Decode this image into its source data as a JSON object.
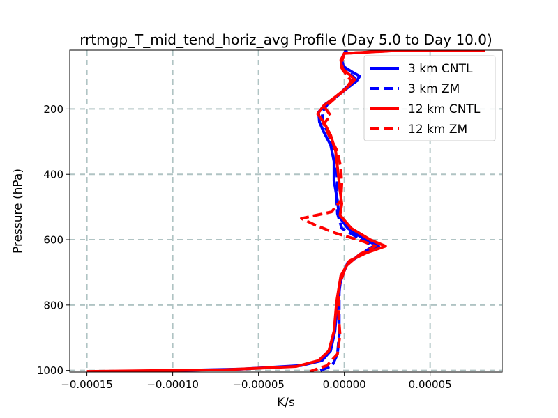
{
  "chart_data": {
    "type": "line",
    "title": "rrtmgp_T_mid_tend_horiz_avg Profile (Day 5.0 to Day 10.0)",
    "xlabel": "K/s",
    "ylabel": "Pressure (hPa)",
    "xlim": [
      -0.00016,
      9.2e-05
    ],
    "ylim": [
      1005,
      20
    ],
    "y_inverted": true,
    "grid": true,
    "legend_position": "top-right",
    "x_ticks": [
      -0.00015,
      -0.0001,
      -5e-05,
      0.0,
      5e-05
    ],
    "x_tick_labels": [
      "−0.00015",
      "−0.00010",
      "−0.00005",
      "0.00000",
      "0.00005"
    ],
    "y_ticks": [
      200,
      400,
      600,
      800,
      1000
    ],
    "y_tick_labels": [
      "200",
      "400",
      "600",
      "800",
      "1000"
    ],
    "series": [
      {
        "name": "3 km CNTL",
        "color": "#0000ff",
        "style": "solid",
        "points": [
          [
            1.5e-06,
            20
          ],
          [
            0.0,
            30
          ],
          [
            -1.5e-06,
            50
          ],
          [
            -5e-07,
            70
          ],
          [
            4e-06,
            85
          ],
          [
            9e-06,
            100
          ],
          [
            7e-06,
            115
          ],
          [
            2e-06,
            135
          ],
          [
            -4e-06,
            160
          ],
          [
            -1.1e-05,
            185
          ],
          [
            -1.5e-05,
            210
          ],
          [
            -1.45e-05,
            240
          ],
          [
            -1.2e-05,
            270
          ],
          [
            -8e-06,
            310
          ],
          [
            -6e-06,
            360
          ],
          [
            -6e-06,
            420
          ],
          [
            -4e-06,
            480
          ],
          [
            -3e-06,
            530
          ],
          [
            2e-06,
            565
          ],
          [
            1.2e-05,
            600
          ],
          [
            2e-05,
            620
          ],
          [
            1.2e-05,
            640
          ],
          [
            2e-06,
            670
          ],
          [
            -2e-06,
            720
          ],
          [
            -4e-06,
            800
          ],
          [
            -5.5e-06,
            880
          ],
          [
            -8e-06,
            940
          ],
          [
            -1.3e-05,
            970
          ],
          [
            -2.5e-05,
            985
          ],
          [
            -6e-05,
            996
          ],
          [
            -0.000125,
            1003
          ]
        ]
      },
      {
        "name": "3 km ZM",
        "color": "#0000ff",
        "style": "dashed",
        "points": [
          [
            1e-06,
            20
          ],
          [
            -1e-06,
            40
          ],
          [
            -1e-06,
            70
          ],
          [
            3e-06,
            90
          ],
          [
            6e-06,
            105
          ],
          [
            3e-06,
            125
          ],
          [
            -2e-06,
            150
          ],
          [
            -9e-06,
            180
          ],
          [
            -1.3e-05,
            210
          ],
          [
            -1.25e-05,
            240
          ],
          [
            -9e-06,
            280
          ],
          [
            -5e-06,
            330
          ],
          [
            -4.5e-06,
            380
          ],
          [
            -4e-06,
            430
          ],
          [
            -4.5e-06,
            470
          ],
          [
            -4e-06,
            520
          ],
          [
            -1.5e-06,
            565
          ],
          [
            1e-05,
            600
          ],
          [
            1.7e-05,
            620
          ],
          [
            9e-06,
            645
          ],
          [
            1e-06,
            680
          ],
          [
            -3e-06,
            740
          ],
          [
            -3e-06,
            820
          ],
          [
            -3e-06,
            890
          ],
          [
            -4e-06,
            950
          ],
          [
            -7e-06,
            985
          ],
          [
            -1.5e-05,
            1003
          ]
        ]
      },
      {
        "name": "12 km CNTL",
        "color": "#ff0000",
        "style": "solid",
        "points": [
          [
            8.2e-05,
            20
          ],
          [
            3.5e-05,
            20
          ],
          [
            0.0,
            30
          ],
          [
            -2e-06,
            50
          ],
          [
            -1.5e-06,
            75
          ],
          [
            3e-06,
            95
          ],
          [
            6e-06,
            110
          ],
          [
            1.5e-06,
            135
          ],
          [
            -4.5e-06,
            160
          ],
          [
            -1.2e-05,
            190
          ],
          [
            -1.55e-05,
            215
          ],
          [
            -1.15e-05,
            245
          ],
          [
            -8e-06,
            280
          ],
          [
            -5e-06,
            330
          ],
          [
            -3.5e-06,
            400
          ],
          [
            -2.5e-06,
            450
          ],
          [
            -1.5e-06,
            490
          ],
          [
            -2.5e-06,
            525
          ],
          [
            4e-06,
            565
          ],
          [
            1.5e-05,
            600
          ],
          [
            2.4e-05,
            620
          ],
          [
            1.3e-05,
            640
          ],
          [
            3e-06,
            665
          ],
          [
            -2e-06,
            710
          ],
          [
            -4.5e-06,
            790
          ],
          [
            -6e-06,
            880
          ],
          [
            -9e-06,
            940
          ],
          [
            -1.5e-05,
            970
          ],
          [
            -2.8e-05,
            988
          ],
          [
            -7e-05,
            998
          ],
          [
            -0.00015,
            1003
          ]
        ]
      },
      {
        "name": "12 km ZM",
        "color": "#ff0000",
        "style": "dashed",
        "points": [
          [
            8.2e-05,
            20
          ],
          [
            3.5e-05,
            20
          ],
          [
            0.0,
            30
          ],
          [
            -1.5e-06,
            55
          ],
          [
            -1e-06,
            80
          ],
          [
            2e-06,
            100
          ],
          [
            4e-06,
            115
          ],
          [
            5e-07,
            140
          ],
          [
            -6e-06,
            170
          ],
          [
            -1.15e-05,
            195
          ],
          [
            -8e-06,
            220
          ],
          [
            -1.2e-05,
            245
          ],
          [
            -9e-06,
            280
          ],
          [
            -4e-06,
            330
          ],
          [
            -2e-06,
            380
          ],
          [
            -1.5e-06,
            430
          ],
          [
            -2e-06,
            480
          ],
          [
            -7.5e-06,
            515
          ],
          [
            -2.5e-05,
            535
          ],
          [
            -1.7e-05,
            555
          ],
          [
            -5e-06,
            580
          ],
          [
            1.1e-05,
            605
          ],
          [
            1.8e-05,
            620
          ],
          [
            9e-06,
            645
          ],
          [
            1e-06,
            680
          ],
          [
            -3e-06,
            740
          ],
          [
            -3.5e-06,
            820
          ],
          [
            -2.5e-06,
            890
          ],
          [
            -4e-06,
            950
          ],
          [
            -1e-05,
            985
          ],
          [
            -2e-05,
            1003
          ]
        ]
      }
    ]
  }
}
